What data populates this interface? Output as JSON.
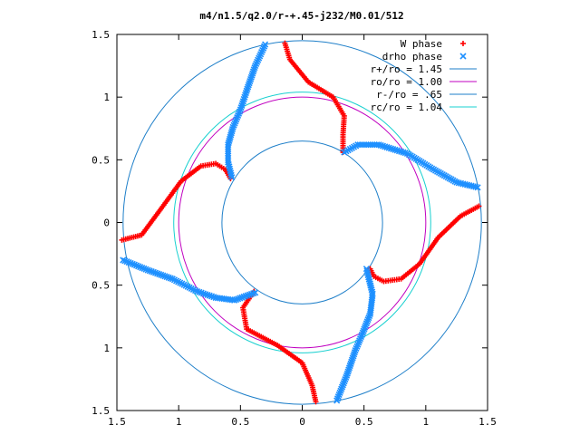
{
  "chart_data": {
    "type": "scatter",
    "title": "m4/n1.5/q2.0/r-+.45-j232/M0.01/512",
    "xlim": [
      -1.5,
      1.5
    ],
    "ylim": [
      -1.5,
      1.5
    ],
    "x_ticks": [
      -1.5,
      -1,
      -0.5,
      0,
      0.5,
      1,
      1.5
    ],
    "y_ticks": [
      -1.5,
      -1,
      -0.5,
      0,
      0.5,
      1,
      1.5
    ],
    "x_tick_labels": [
      "1.5",
      "1",
      "0.5",
      "0",
      "0.5",
      "1",
      "1.5"
    ],
    "y_tick_labels": [
      "1.5",
      "1",
      "0.5",
      "0",
      "0.5",
      "1",
      "1.5"
    ],
    "grid": false,
    "legend_position": "top-right",
    "series": [
      {
        "name": "W phase",
        "marker": "+",
        "color": "#ff0000",
        "points": [
          [
            -0.14,
            1.43
          ],
          [
            -0.1,
            1.3
          ],
          [
            0.05,
            1.12
          ],
          [
            0.25,
            1.0
          ],
          [
            0.34,
            0.85
          ],
          [
            0.33,
            0.7
          ],
          [
            0.33,
            0.56
          ],
          [
            -0.58,
            0.35
          ],
          [
            -0.62,
            0.42
          ],
          [
            -0.7,
            0.47
          ],
          [
            -0.82,
            0.45
          ],
          [
            -0.98,
            0.33
          ],
          [
            -1.15,
            0.1
          ],
          [
            -1.3,
            -0.1
          ],
          [
            -1.46,
            -0.14
          ],
          [
            -0.39,
            -0.55
          ],
          [
            -0.48,
            -0.68
          ],
          [
            -0.45,
            -0.85
          ],
          [
            -0.2,
            -0.98
          ],
          [
            0.0,
            -1.12
          ],
          [
            0.08,
            -1.3
          ],
          [
            0.11,
            -1.43
          ],
          [
            0.55,
            -0.37
          ],
          [
            0.58,
            -0.43
          ],
          [
            0.66,
            -0.47
          ],
          [
            0.8,
            -0.45
          ],
          [
            0.95,
            -0.33
          ],
          [
            1.1,
            -0.12
          ],
          [
            1.28,
            0.05
          ],
          [
            1.43,
            0.13
          ]
        ]
      },
      {
        "name": "drho phase",
        "marker": "x",
        "color": "#1e90ff",
        "points": [
          [
            -0.3,
            1.42
          ],
          [
            -0.38,
            1.25
          ],
          [
            -0.45,
            1.05
          ],
          [
            -0.5,
            0.9
          ],
          [
            -0.56,
            0.76
          ],
          [
            -0.6,
            0.62
          ],
          [
            -0.6,
            0.48
          ],
          [
            -0.57,
            0.36
          ],
          [
            0.34,
            0.56
          ],
          [
            0.45,
            0.62
          ],
          [
            0.62,
            0.62
          ],
          [
            0.85,
            0.55
          ],
          [
            1.05,
            0.43
          ],
          [
            1.25,
            0.32
          ],
          [
            1.42,
            0.28
          ],
          [
            -1.45,
            -0.3
          ],
          [
            -1.25,
            -0.38
          ],
          [
            -1.05,
            -0.45
          ],
          [
            -0.85,
            -0.55
          ],
          [
            -0.7,
            -0.6
          ],
          [
            -0.55,
            -0.62
          ],
          [
            -0.38,
            -0.56
          ],
          [
            0.28,
            -1.42
          ],
          [
            0.36,
            -1.22
          ],
          [
            0.43,
            -1.02
          ],
          [
            0.49,
            -0.88
          ],
          [
            0.55,
            -0.73
          ],
          [
            0.57,
            -0.57
          ],
          [
            0.52,
            -0.37
          ]
        ]
      },
      {
        "name": "r+/ro = 1.45",
        "type": "circle",
        "radius": 1.45,
        "color": "#1e7fc9"
      },
      {
        "name": "ro/ro = 1.00",
        "type": "circle",
        "radius": 1.0,
        "color": "#c000c0"
      },
      {
        "name": "r-/ro = .65",
        "type": "circle",
        "radius": 0.65,
        "color": "#1e7fc9"
      },
      {
        "name": "rc/ro = 1.04",
        "type": "circle",
        "radius": 1.04,
        "color": "#18d0d0"
      }
    ]
  }
}
